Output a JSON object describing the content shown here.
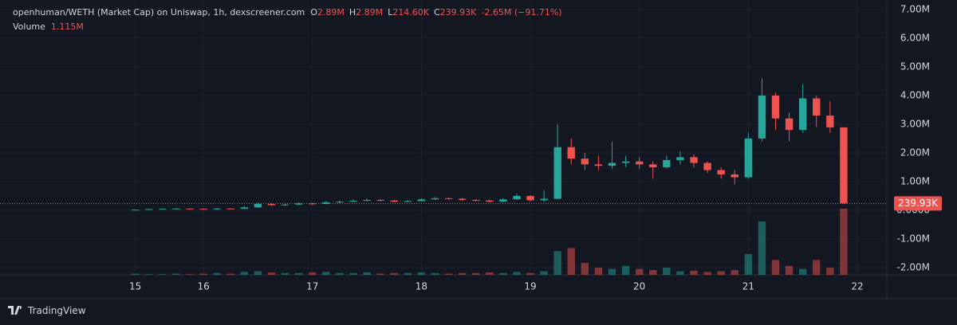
{
  "chart_data": {
    "type": "candlestick",
    "title": "openhuman/WETH (Market Cap) on Uniswap, 1h, dexscreener.com",
    "ohlc_labels": [
      "O",
      "H",
      "L",
      "C"
    ],
    "ohlc_values": [
      "2.89M",
      "2.89M",
      "214.60K",
      "239.93K"
    ],
    "change": "-2.65M (−91.71%)",
    "volume_title": "Volume",
    "volume_value": "1.115M",
    "last_price_label": "239.93K",
    "up_color": "#26a69a",
    "down_color": "#ef5350",
    "grid": true,
    "x": [
      9,
      12,
      15,
      18,
      21,
      24,
      27,
      30,
      33,
      36,
      39,
      42,
      45,
      48,
      51,
      54,
      57,
      60,
      63,
      66,
      69,
      72,
      75,
      78,
      81,
      84,
      87,
      90,
      93,
      96,
      99,
      102,
      105,
      108,
      111,
      114,
      117,
      120,
      123,
      126,
      129,
      132,
      135,
      138,
      141,
      144,
      147,
      150,
      153,
      156,
      159,
      162,
      165
    ],
    "open": [
      0.01,
      0.02,
      0.04,
      0.05,
      0.06,
      0.05,
      0.04,
      0.06,
      0.05,
      0.1,
      0.22,
      0.18,
      0.2,
      0.24,
      0.22,
      0.28,
      0.3,
      0.33,
      0.36,
      0.34,
      0.3,
      0.32,
      0.38,
      0.42,
      0.4,
      0.36,
      0.34,
      0.3,
      0.38,
      0.5,
      0.35,
      0.4,
      2.2,
      1.8,
      1.6,
      1.55,
      1.65,
      1.7,
      1.6,
      1.5,
      1.75,
      1.85,
      1.65,
      1.4,
      1.25,
      1.15,
      2.5,
      4.0,
      3.2,
      2.8,
      3.9,
      3.3,
      2.89
    ],
    "high": [
      0.03,
      0.05,
      0.07,
      0.08,
      0.07,
      0.06,
      0.08,
      0.07,
      0.14,
      0.26,
      0.24,
      0.23,
      0.27,
      0.26,
      0.32,
      0.34,
      0.38,
      0.41,
      0.39,
      0.36,
      0.36,
      0.42,
      0.47,
      0.45,
      0.43,
      0.39,
      0.37,
      0.42,
      0.58,
      0.52,
      0.7,
      3.0,
      2.5,
      2.0,
      1.9,
      2.4,
      1.9,
      1.85,
      1.7,
      1.9,
      2.05,
      1.95,
      1.7,
      1.5,
      1.4,
      2.7,
      4.6,
      4.1,
      3.4,
      4.4,
      4.0,
      3.8,
      2.89
    ],
    "low": [
      0.0,
      0.01,
      0.03,
      0.04,
      0.03,
      0.02,
      0.03,
      0.04,
      0.04,
      0.09,
      0.15,
      0.16,
      0.18,
      0.19,
      0.21,
      0.25,
      0.28,
      0.31,
      0.3,
      0.27,
      0.28,
      0.3,
      0.36,
      0.37,
      0.33,
      0.31,
      0.27,
      0.28,
      0.36,
      0.31,
      0.3,
      0.38,
      1.6,
      1.4,
      1.4,
      1.45,
      1.5,
      1.45,
      1.1,
      1.45,
      1.6,
      1.5,
      1.3,
      1.1,
      0.9,
      1.1,
      2.4,
      2.8,
      2.4,
      2.7,
      2.9,
      2.7,
      0.2146
    ],
    "close": [
      0.02,
      0.04,
      0.05,
      0.06,
      0.05,
      0.04,
      0.06,
      0.05,
      0.1,
      0.22,
      0.18,
      0.2,
      0.24,
      0.22,
      0.28,
      0.3,
      0.33,
      0.36,
      0.34,
      0.3,
      0.32,
      0.38,
      0.42,
      0.4,
      0.36,
      0.34,
      0.3,
      0.38,
      0.5,
      0.35,
      0.4,
      2.2,
      1.8,
      1.6,
      1.55,
      1.65,
      1.7,
      1.6,
      1.5,
      1.75,
      1.85,
      1.65,
      1.4,
      1.25,
      1.15,
      2.5,
      4.0,
      3.2,
      2.8,
      3.9,
      3.3,
      2.89,
      0.23993
    ],
    "volume": [
      0.02,
      0.01,
      0.01,
      0.02,
      0.01,
      0.02,
      0.03,
      0.02,
      0.05,
      0.06,
      0.04,
      0.03,
      0.03,
      0.04,
      0.05,
      0.03,
      0.03,
      0.04,
      0.02,
      0.03,
      0.03,
      0.04,
      0.03,
      0.02,
      0.03,
      0.03,
      0.04,
      0.03,
      0.05,
      0.03,
      0.06,
      0.4,
      0.45,
      0.2,
      0.12,
      0.1,
      0.15,
      0.1,
      0.08,
      0.12,
      0.06,
      0.07,
      0.05,
      0.06,
      0.08,
      0.35,
      0.9,
      0.25,
      0.15,
      0.1,
      0.25,
      0.12,
      1.115
    ],
    "xlim": [
      -20.8,
      174.5
    ],
    "xticks": [
      {
        "value": 9,
        "label": "15"
      },
      {
        "value": 24,
        "label": "16"
      },
      {
        "value": 48,
        "label": "17"
      },
      {
        "value": 72,
        "label": "18"
      },
      {
        "value": 96,
        "label": "19"
      },
      {
        "value": 120,
        "label": "20"
      },
      {
        "value": 144,
        "label": "21"
      },
      {
        "value": 168,
        "label": "22"
      }
    ],
    "ylim": [
      -2.25,
      7.33
    ],
    "yticks": [
      {
        "value": 7,
        "label": "7.00M"
      },
      {
        "value": 6,
        "label": "6.00M"
      },
      {
        "value": 5,
        "label": "5.00M"
      },
      {
        "value": 4,
        "label": "4.00M"
      },
      {
        "value": 3,
        "label": "3.00M"
      },
      {
        "value": 2,
        "label": "2.00M"
      },
      {
        "value": 1,
        "label": "1.00M"
      },
      {
        "value": 0,
        "label": "0.0000"
      },
      {
        "value": -1,
        "label": "-1.00M"
      },
      {
        "value": -2,
        "label": "-2.00M"
      }
    ]
  },
  "brand": "TradingView"
}
